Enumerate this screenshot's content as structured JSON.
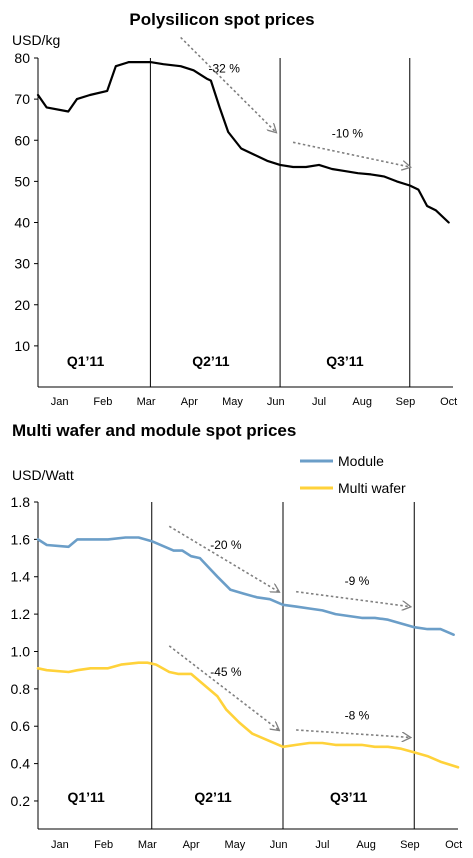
{
  "chart_data": [
    {
      "type": "line",
      "title": "Polysilicon spot prices",
      "ylabel": "USD/kg",
      "ylim": [
        0,
        80
      ],
      "yticks": [
        10,
        20,
        30,
        40,
        50,
        60,
        70,
        80
      ],
      "xlim": [
        0,
        9.6
      ],
      "month_labels": [
        "Jan",
        "Feb",
        "Mar",
        "Apr",
        "May",
        "Jun",
        "Jul",
        "Aug",
        "Sep",
        "Oct"
      ],
      "quarter_dividers": [
        2.6,
        5.6,
        8.6
      ],
      "quarter_labels": [
        {
          "text": "Q1’11",
          "x": 1.1
        },
        {
          "text": "Q2’11",
          "x": 4.0
        },
        {
          "text": "Q3’11",
          "x": 7.1
        }
      ],
      "series": [
        {
          "color": "#000000",
          "x": [
            -0.1,
            0.2,
            0.7,
            0.9,
            1.2,
            1.6,
            1.8,
            2.1,
            2.6,
            2.9,
            3.3,
            3.6,
            3.9,
            4.0,
            4.2,
            4.4,
            4.7,
            5.0,
            5.3,
            5.6,
            5.9,
            6.2,
            6.5,
            6.8,
            7.1,
            7.4,
            7.7,
            8.0,
            8.3,
            8.6,
            8.8,
            9.0,
            9.2,
            9.5
          ],
          "y": [
            71,
            68,
            67,
            70,
            71,
            72,
            78,
            79,
            79,
            78.5,
            78,
            77,
            75,
            74.5,
            68,
            62,
            58,
            56.5,
            55,
            54,
            53.5,
            53.5,
            54,
            53,
            52.5,
            52,
            51.7,
            51.2,
            50,
            49,
            48,
            44,
            43,
            40
          ]
        }
      ],
      "annotations": [
        {
          "text": "-32 %",
          "x0": 3.3,
          "y0": 85,
          "x1": 5.5,
          "y1": 62
        },
        {
          "text": "-10 %",
          "x0": 5.9,
          "y0": 59.5,
          "x1": 8.6,
          "y1": 53.5
        }
      ]
    },
    {
      "type": "line",
      "title": "Multi wafer and module spot prices",
      "ylabel": "USD/Watt",
      "ylim": [
        0.05,
        1.8
      ],
      "yticks": [
        0.2,
        0.4,
        0.6,
        0.8,
        1.0,
        1.2,
        1.4,
        1.6,
        1.8
      ],
      "ytick_labels": [
        "0.2",
        "0.4",
        "0.6",
        "0.8",
        "1.0",
        "1.2",
        "1.4",
        "1.6",
        "1.8"
      ],
      "xlim": [
        0,
        9.6
      ],
      "month_labels": [
        "Jan",
        "Feb",
        "Mar",
        "Apr",
        "May",
        "Jun",
        "Jul",
        "Aug",
        "Sep",
        "Oct"
      ],
      "quarter_dividers": [
        2.6,
        5.6,
        8.6
      ],
      "quarter_labels": [
        {
          "text": "Q1’11",
          "x": 1.1
        },
        {
          "text": "Q2’11",
          "x": 4.0
        },
        {
          "text": "Q3’11",
          "x": 7.1
        }
      ],
      "legend": [
        {
          "name": "Module",
          "color": "#6b9ec8"
        },
        {
          "name": "Multi wafer",
          "color": "#ffd23a"
        }
      ],
      "legend_position": "top-right",
      "series": [
        {
          "name": "Module",
          "color": "#6b9ec8",
          "x": [
            -0.1,
            0.2,
            0.7,
            0.9,
            1.2,
            1.6,
            2.0,
            2.3,
            2.6,
            2.9,
            3.1,
            3.3,
            3.5,
            3.7,
            3.9,
            4.1,
            4.4,
            4.7,
            5.0,
            5.3,
            5.6,
            5.9,
            6.2,
            6.5,
            6.8,
            7.1,
            7.4,
            7.7,
            8.0,
            8.3,
            8.6,
            8.9,
            9.2,
            9.5
          ],
          "y": [
            1.6,
            1.57,
            1.56,
            1.6,
            1.6,
            1.6,
            1.61,
            1.61,
            1.59,
            1.56,
            1.54,
            1.54,
            1.51,
            1.5,
            1.45,
            1.4,
            1.33,
            1.31,
            1.29,
            1.28,
            1.25,
            1.24,
            1.23,
            1.22,
            1.2,
            1.19,
            1.18,
            1.18,
            1.17,
            1.15,
            1.13,
            1.12,
            1.12,
            1.09
          ]
        },
        {
          "name": "Multi wafer",
          "color": "#ffd23a",
          "x": [
            -0.1,
            0.2,
            0.7,
            0.9,
            1.2,
            1.6,
            1.9,
            2.3,
            2.5,
            2.7,
            3.0,
            3.2,
            3.5,
            3.8,
            4.1,
            4.3,
            4.6,
            4.9,
            5.2,
            5.6,
            5.9,
            6.2,
            6.5,
            6.8,
            7.1,
            7.4,
            7.7,
            8.0,
            8.3,
            8.6,
            8.9,
            9.2,
            9.6
          ],
          "y": [
            0.91,
            0.9,
            0.89,
            0.9,
            0.91,
            0.91,
            0.93,
            0.94,
            0.94,
            0.93,
            0.89,
            0.88,
            0.88,
            0.82,
            0.76,
            0.69,
            0.62,
            0.56,
            0.53,
            0.49,
            0.5,
            0.51,
            0.51,
            0.5,
            0.5,
            0.5,
            0.49,
            0.49,
            0.48,
            0.46,
            0.44,
            0.41,
            0.38
          ]
        }
      ],
      "annotations": [
        {
          "text": "-20 %",
          "x0": 3.0,
          "y0": 1.67,
          "x1": 5.5,
          "y1": 1.32
        },
        {
          "text": "-9 %",
          "x0": 5.9,
          "y0": 1.32,
          "x1": 8.5,
          "y1": 1.24
        },
        {
          "text": "-45 %",
          "x0": 3.0,
          "y0": 1.03,
          "x1": 5.5,
          "y1": 0.58
        },
        {
          "text": "-8 %",
          "x0": 5.9,
          "y0": 0.58,
          "x1": 8.5,
          "y1": 0.54
        }
      ]
    }
  ]
}
